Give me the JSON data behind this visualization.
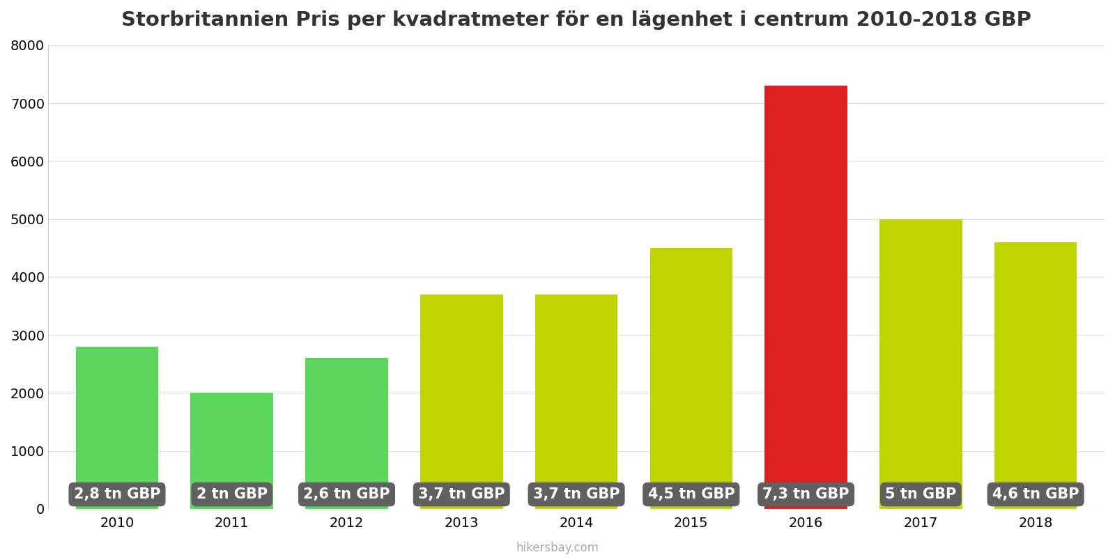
{
  "years": [
    2010,
    2011,
    2012,
    2013,
    2014,
    2015,
    2016,
    2017,
    2018
  ],
  "values": [
    2800,
    2000,
    2600,
    3700,
    3700,
    4500,
    7300,
    5000,
    4600
  ],
  "bar_colors": [
    "#5cd65c",
    "#5cd65c",
    "#5cd65c",
    "#bfd400",
    "#bfd400",
    "#bfd400",
    "#e02020",
    "#bfd400",
    "#bfd400"
  ],
  "labels": [
    "2,8 tn GBP",
    "2 tn GBP",
    "2,6 tn GBP",
    "3,7 tn GBP",
    "3,7 tn GBP",
    "4,5 tn GBP",
    "7,3 tn GBP",
    "5 tn GBP",
    "4,6 tn GBP"
  ],
  "title": "Storbritannien Pris per kvadratmeter för en lägenhet i centrum 2010-2018 GBP",
  "ylim": [
    0,
    8000
  ],
  "yticks": [
    0,
    1000,
    2000,
    3000,
    4000,
    5000,
    6000,
    7000,
    8000
  ],
  "footer": "hikersbay.com",
  "background_color": "#ffffff",
  "label_box_color": "#606060",
  "label_text_color": "#ffffff",
  "label_fontsize": 15,
  "title_fontsize": 21,
  "bar_width": 0.72
}
